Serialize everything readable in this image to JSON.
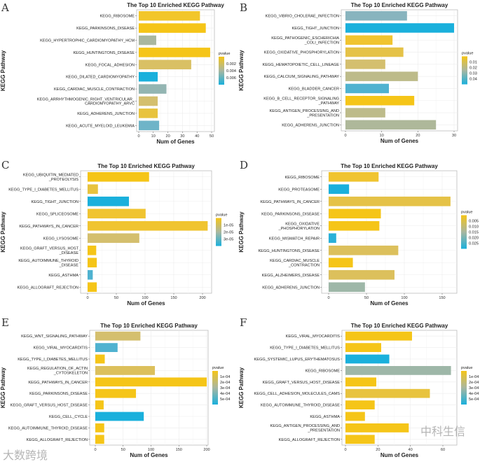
{
  "colors": {
    "low_p": "#F5C518",
    "mid_p": "#A9B7A0",
    "high_p": "#1AB0DC"
  },
  "watermarks": {
    "left": "大数跨境",
    "right": "中科生信"
  },
  "chart_data": [
    {
      "panel": "A",
      "type": "bar",
      "orientation": "horizontal",
      "title": "The Top 10 Enriched KEGG Pathway",
      "xlabel": "Num of Genes",
      "ylabel": "KEGG Pathway",
      "categories": [
        "KEGG_RIBOSOME",
        "KEGG_PARKINSONS_DISEASE",
        "KEGG_HYPERTROPHIC_CARDIOMYOPATHY_HCM",
        "KEGG_HUNTINGTONS_DISEASE",
        "KEGG_FOCAL_ADHESION",
        "KEGG_DILATED_CARDIOMYOPATHY",
        "KEGG_CARDIAC_MUSCLE_CONTRACTION",
        "KEGG_ARRHYTHMOGENIC_RIGHT_VENTRICULAR_\nCARDIOMYOPATHY_ARVC",
        "KEGG_ADHERENS_JUNCTION",
        "KEGG_ACUTE_MYELOID_LEUKEMIA"
      ],
      "values": [
        42,
        46,
        12,
        49,
        36,
        13,
        19,
        13,
        13,
        14
      ],
      "bar_colors": [
        "#F2C62A",
        "#F5C518",
        "#A9B7A0",
        "#F5C518",
        "#D9C064",
        "#1AB0DC",
        "#93B5B2",
        "#D4BF6E",
        "#E8C33E",
        "#6FB4C8"
      ],
      "xticks": [
        0,
        10,
        20,
        30,
        40,
        50
      ],
      "legend_title": "pvalue",
      "legend_labels": [
        "0.002",
        "0.004",
        "0.006"
      ]
    },
    {
      "panel": "B",
      "type": "bar",
      "orientation": "horizontal",
      "title": "The Top 10 Enriched KEGG Pathway",
      "xlabel": "Num of Genes",
      "ylabel": "KEGG Pathway",
      "categories": [
        "KEGG_VIBRIO_CHOLERAE_INFECTION",
        "KEGG_TIGHT_JUNCTION",
        "KEGG_PATHOGENIC_ESCHERICHIA\n_COLI_INFECTION",
        "KEGG_OXIDATIVE_PHOSPHORYLATION",
        "KEGG_HEMATOPOIETIC_CELL_LINEAGE",
        "KEGG_CALCIUM_SIGNALING_PATHWAY",
        "KEGG_BLADDER_CANCER",
        "KEGG_B_CELL_RECEPTOR_SIGNALING\n_PATHWAY",
        "KEGG_ANTIGEN_PROCESSING_AND\n_PRESENTATION",
        "KEGG_ADHERENS_JUNCTION"
      ],
      "values": [
        17,
        30,
        13,
        16,
        11,
        20,
        12,
        19,
        11,
        25
      ],
      "bar_colors": [
        "#88B4BE",
        "#1AB0DC",
        "#F0C430",
        "#E5C247",
        "#D4BF6E",
        "#BDBB8A",
        "#4FB2D0",
        "#F5C518",
        "#BDBB8A",
        "#AEB89A"
      ],
      "xticks": [
        0,
        10,
        20,
        30
      ],
      "legend_title": "pvalue",
      "legend_labels": [
        "0.01",
        "0.02",
        "0.03",
        "0.04"
      ]
    },
    {
      "panel": "C",
      "type": "bar",
      "orientation": "horizontal",
      "title": "The Top 10 Enriched KEGG Pathway",
      "xlabel": "Num of Genes",
      "ylabel": "KEGG Pathway",
      "categories": [
        "KEGG_UBIQUITIN_MEDIATED\n_PROTEOLYSIS",
        "KEGG_TYPE_I_DIABETES_MELLITUS",
        "KEGG_TIGHT_JUNCTION",
        "KEGG_SPLICEOSOME",
        "KEGG_PATHWAYS_IN_CANCER",
        "KEGG_LYSOSOME",
        "KEGG_GRAFT_VERSUS_HOST\n_DISEASE",
        "KEGG_AUTOIMMUNE_THYROID\n_DISEASE",
        "KEGG_ASTHMA",
        "KEGG_ALLOGRAFT_REJECTION"
      ],
      "values": [
        107,
        18,
        72,
        101,
        209,
        90,
        15,
        16,
        9,
        16
      ],
      "bar_colors": [
        "#F5C518",
        "#E8C33E",
        "#1AB0DC",
        "#F0C430",
        "#F0C430",
        "#D4BF6E",
        "#F5C518",
        "#F5C518",
        "#4FB2D0",
        "#F5C518"
      ],
      "xticks": [
        0,
        50,
        100,
        150,
        200
      ],
      "legend_title": "pvalue",
      "legend_labels": [
        "1e-05",
        "2e-05",
        "3e-05"
      ]
    },
    {
      "panel": "D",
      "type": "bar",
      "orientation": "horizontal",
      "title": "The Top 10 Enriched KEGG Pathway",
      "xlabel": "Num of Genes",
      "ylabel": "KEGG Pathway",
      "categories": [
        "KEGG_RIBOSOME",
        "KEGG_PROTEASOME",
        "KEGG_PATHWAYS_IN_CANCER",
        "KEGG_PARKINSONS_DISEASE",
        "KEGG_OXIDATIVE\n_PHOSPHORYLATION",
        "KEGG_MISMATCH_REPAIR",
        "KEGG_HUNTINGTONS_DISEASE",
        "KEGG_CARDIAC_MUSCLE\n_CONTRACTION",
        "KEGG_ALZHEIMERS_DISEASE",
        "KEGG_ADHERENS_JUNCTION"
      ],
      "values": [
        66,
        27,
        161,
        69,
        67,
        10,
        92,
        32,
        87,
        48
      ],
      "bar_colors": [
        "#F0C430",
        "#1AB0DC",
        "#E5C247",
        "#F5C518",
        "#F5C518",
        "#2AB0D8",
        "#DCC05C",
        "#F5C518",
        "#DCC05C",
        "#9EB7A8"
      ],
      "xticks": [
        0,
        50,
        100,
        150
      ],
      "legend_title": "pvalue",
      "legend_labels": [
        "0.005",
        "0.010",
        "0.015",
        "0.020",
        "0.025"
      ]
    },
    {
      "panel": "E",
      "type": "bar",
      "orientation": "horizontal",
      "title": "The Top 10 Enriched KEGG Pathway",
      "xlabel": "Num of Genes",
      "ylabel": "KEGG Pathway",
      "categories": [
        "KEGG_WNT_SIGNALING_PATHWAY",
        "KEGG_VIRAL_MYOCARDITIS",
        "KEGG_TYPE_I_DIABETES_MELLITUS",
        "KEGG_REGULATION_OF_ACTIN\n_CYTOSKELETON",
        "KEGG_PATHWAYS_IN_CANCER",
        "KEGG_PARKINSONS_DISEASE",
        "KEGG_GRAFT_VERSUS_HOST_DISEASE",
        "KEGG_CELL_CYCLE",
        "KEGG_AUTOIMMUNE_THYROID_DISEASE",
        "KEGG_ALLOGRAFT_REJECTION"
      ],
      "values": [
        81,
        40,
        17,
        107,
        200,
        73,
        15,
        87,
        16,
        16
      ],
      "bar_colors": [
        "#D4BF6E",
        "#4FB2D0",
        "#F5C518",
        "#DCC05C",
        "#F5C518",
        "#F5C518",
        "#F5C518",
        "#1AB0DC",
        "#F5C518",
        "#F5C518"
      ],
      "xticks": [
        0,
        50,
        100,
        150,
        200
      ],
      "legend_title": "pvalue",
      "legend_labels": [
        "1e-04",
        "2e-04",
        "3e-04",
        "4e-04",
        "5e-04"
      ]
    },
    {
      "panel": "F",
      "type": "bar",
      "orientation": "horizontal",
      "title": "The Top 10 Enriched KEGG Pathway",
      "xlabel": "Num of Genes",
      "ylabel": "KEGG Pathway",
      "categories": [
        "KEGG_VIRAL_MYOCARDITIS",
        "KEGG_TYPE_I_DIABETES_MELLITUS",
        "KEGG_SYSTEMIC_LUPUS_ERYTHEMATOSUS",
        "KEGG_RIBOSOME",
        "KEGG_GRAFT_VERSUS_HOST_DISEASE",
        "KEGG_CELL_ADHESION_MOLECULES_CAMS",
        "KEGG_AUTOIMMUNE_THYROID_DISEASE",
        "KEGG_ASTHMA",
        "KEGG_ANTIGEN_PROCESSING_AND\n_PRESENTATION",
        "KEGG_ALLOGRAFT_REJECTION"
      ],
      "values": [
        41,
        22,
        27,
        65,
        19,
        52,
        18,
        12,
        39,
        18
      ],
      "bar_colors": [
        "#F5C518",
        "#F5C518",
        "#1AB0DC",
        "#9EB7A8",
        "#F5C518",
        "#E8C33E",
        "#F5C518",
        "#F5C518",
        "#F5C518",
        "#F5C518"
      ],
      "xticks": [
        0,
        20,
        40,
        60
      ],
      "legend_title": "pvalue",
      "legend_labels": [
        "1e-04",
        "2e-04",
        "3e-04",
        "4e-04",
        "5e-04"
      ]
    }
  ]
}
